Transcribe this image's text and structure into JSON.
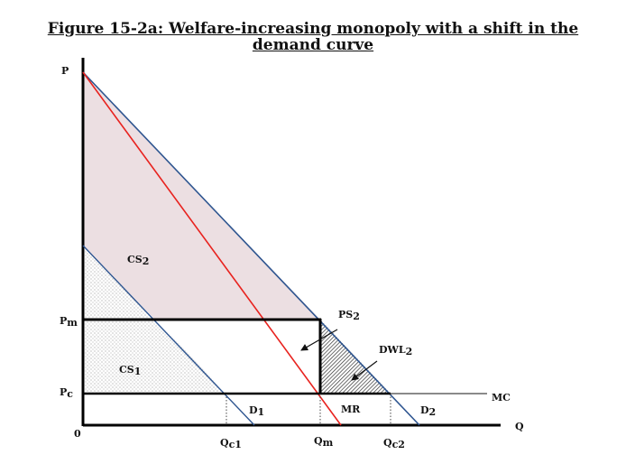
{
  "title": {
    "line1": "Figure 15-2a: Welfare-increasing monopoly with a shift in the",
    "line2": "demand curve"
  },
  "axes": {
    "y_label": "P",
    "x_label": "Q",
    "origin_label": "0"
  },
  "price_labels": {
    "pm": {
      "main": "P",
      "sub": "m"
    },
    "pc": {
      "main": "P",
      "sub": "c"
    }
  },
  "quantity_labels": {
    "qc1": {
      "main": "Q",
      "sub": "c1"
    },
    "qm": {
      "main": "Q",
      "sub": "m"
    },
    "qc2": {
      "main": "Q",
      "sub": "c2"
    }
  },
  "curve_labels": {
    "d1": {
      "main": "D",
      "sub": "1"
    },
    "d2": {
      "main": "D",
      "sub": "2"
    },
    "mr": {
      "main": "MR"
    },
    "mc": {
      "main": "MC"
    }
  },
  "area_labels": {
    "cs2": {
      "main": "CS",
      "sub": "2"
    },
    "cs1": {
      "main": "CS",
      "sub": "1"
    },
    "ps2": {
      "main": "PS",
      "sub": "2"
    },
    "dwl2": {
      "main": "DWL",
      "sub": "2"
    }
  },
  "colors": {
    "demand": "#2e5590",
    "mr": "#e8231f",
    "cs2_fill": "#ecdfe2",
    "axis": "#000000",
    "mc": "#555555"
  }
}
